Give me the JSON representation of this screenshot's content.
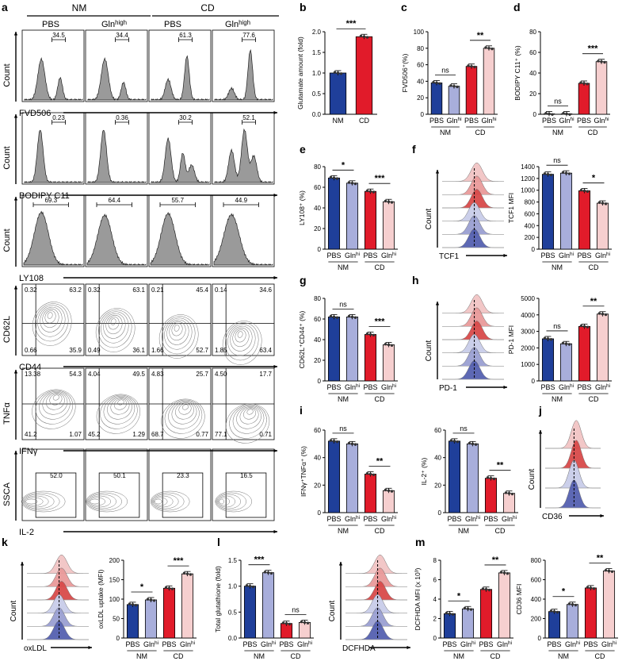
{
  "panel_letters": [
    "a",
    "b",
    "c",
    "d",
    "e",
    "f",
    "g",
    "h",
    "i",
    "j",
    "k",
    "l",
    "m"
  ],
  "flow": {
    "groups": [
      "NM",
      "CD"
    ],
    "conditions": [
      "PBS",
      "Gln",
      "PBS",
      "Gln"
    ],
    "gln_sup": "high",
    "rows": [
      {
        "id": "fvd",
        "xlabel": "FVD506",
        "ylabel": "Count",
        "type": "hist",
        "gates": [
          "34.5",
          "34.4",
          "61.3",
          "77.6"
        ]
      },
      {
        "id": "bodipy",
        "xlabel": "BODIPY C11",
        "ylabel": "Count",
        "type": "hist",
        "gates": [
          "0.23",
          "0.36",
          "30.2",
          "52.1"
        ]
      },
      {
        "id": "ly108",
        "xlabel": "LY108",
        "ylabel": "Count",
        "type": "hist",
        "gates": [
          "69.3",
          "64.4",
          "55.7",
          "44.9"
        ]
      },
      {
        "id": "cd62l",
        "xlabel": "CD44",
        "ylabel": "CD62L",
        "type": "quad",
        "quads": [
          [
            "0.32",
            "63.2",
            "0.66",
            "35.9"
          ],
          [
            "0.32",
            "63.1",
            "0.49",
            "36.1"
          ],
          [
            "0.21",
            "45.4",
            "1.66",
            "52.7"
          ],
          [
            "0.14",
            "34.6",
            "1.85",
            "63.4"
          ]
        ]
      },
      {
        "id": "tnfa",
        "xlabel": "IFNγ",
        "ylabel": "TNFα",
        "type": "quad",
        "quads": [
          [
            "13.38",
            "54.3",
            "41.2",
            "1.07"
          ],
          [
            "4.04",
            "49.5",
            "45.2",
            "1.29"
          ],
          [
            "4.83",
            "25.7",
            "68.7",
            "0.77"
          ],
          [
            "4.50",
            "17.7",
            "77.1",
            "0.71"
          ]
        ]
      },
      {
        "id": "il2",
        "xlabel": "IL-2",
        "ylabel": "SSCA",
        "type": "gate",
        "gates": [
          "52.0",
          "50.1",
          "23.3",
          "16.5"
        ]
      }
    ]
  },
  "histo": {
    "f": {
      "xlabel": "TCF1",
      "ylabel": "Count"
    },
    "h": {
      "xlabel": "PD-1",
      "ylabel": "Count"
    },
    "j": {
      "xlabel": "CD36",
      "ylabel": "Count"
    },
    "k": {
      "xlabel": "oxLDL",
      "ylabel": "Count"
    },
    "m": {
      "xlabel": "DCFHDA",
      "ylabel": "Count"
    }
  },
  "chart_data": [
    {
      "id": "b",
      "type": "bar",
      "categories": [
        "NM",
        "CD"
      ],
      "values": [
        1.0,
        1.88
      ],
      "ylabel": "Glutamate amount (fold)",
      "ylim": [
        0,
        2.0
      ],
      "yticks": [
        "0.0",
        "0.5",
        "1.0",
        "1.5",
        "2.0"
      ],
      "sig": [
        {
          "label": "***",
          "from": 0,
          "to": 1
        }
      ]
    },
    {
      "id": "c",
      "type": "bar",
      "categories": [
        "PBS",
        "Gln",
        "PBS",
        "Gln"
      ],
      "groups": [
        "NM",
        "CD"
      ],
      "values": [
        38,
        34,
        58,
        80
      ],
      "ylabel": "FVD506⁺(%)",
      "ylim": [
        0,
        100
      ],
      "yticks": [
        "0",
        "20",
        "40",
        "60",
        "80",
        "100"
      ],
      "sig": [
        {
          "label": "ns",
          "from": 0,
          "to": 1
        },
        {
          "label": "**",
          "from": 2,
          "to": 3
        }
      ]
    },
    {
      "id": "d",
      "type": "bar",
      "categories": [
        "PBS",
        "Gln",
        "PBS",
        "Gln"
      ],
      "groups": [
        "NM",
        "CD"
      ],
      "values": [
        0.4,
        0.4,
        30,
        51
      ],
      "ylabel": "BODIPY C11⁺ (%)",
      "ylim": [
        0,
        80
      ],
      "yticks": [
        "0",
        "20",
        "40",
        "60",
        "80"
      ],
      "sig": [
        {
          "label": "ns",
          "from": 0,
          "to": 1
        },
        {
          "label": "***",
          "from": 2,
          "to": 3
        }
      ]
    },
    {
      "id": "e",
      "type": "bar",
      "categories": [
        "PBS",
        "Gln",
        "PBS",
        "Gln"
      ],
      "groups": [
        "NM",
        "CD"
      ],
      "values": [
        69,
        64,
        56,
        46
      ],
      "ylabel": "LY108⁺ (%)",
      "ylim": [
        0,
        80
      ],
      "yticks": [
        "0",
        "20",
        "40",
        "60",
        "80"
      ],
      "sig": [
        {
          "label": "*",
          "from": 0,
          "to": 1
        },
        {
          "label": "***",
          "from": 2,
          "to": 3
        }
      ]
    },
    {
      "id": "f",
      "type": "bar",
      "categories": [
        "PBS",
        "Gln",
        "PBS",
        "Gln"
      ],
      "groups": [
        "NM",
        "CD"
      ],
      "values": [
        1270,
        1290,
        990,
        780
      ],
      "ylabel": "TCF1 MFI",
      "ylim": [
        0,
        1400
      ],
      "yticks": [
        "0",
        "200",
        "400",
        "600",
        "800",
        "1000",
        "1200",
        "1400"
      ],
      "sig": [
        {
          "label": "ns",
          "from": 0,
          "to": 1
        },
        {
          "label": "*",
          "from": 2,
          "to": 3
        }
      ]
    },
    {
      "id": "g",
      "type": "bar",
      "categories": [
        "PBS",
        "Gln",
        "PBS",
        "Gln"
      ],
      "groups": [
        "NM",
        "CD"
      ],
      "values": [
        62,
        62,
        45,
        35
      ],
      "ylabel": "CD62L⁺CD44⁺ (%)",
      "ylim": [
        0,
        80
      ],
      "yticks": [
        "0",
        "20",
        "40",
        "60",
        "80"
      ],
      "sig": [
        {
          "label": "ns",
          "from": 0,
          "to": 1
        },
        {
          "label": "***",
          "from": 2,
          "to": 3
        }
      ]
    },
    {
      "id": "h",
      "type": "bar",
      "categories": [
        "PBS",
        "Gln",
        "PBS",
        "Gln"
      ],
      "groups": [
        "NM",
        "CD"
      ],
      "values": [
        2550,
        2250,
        3300,
        4050
      ],
      "ylabel": "PD-1 MFI",
      "ylim": [
        0,
        5000
      ],
      "yticks": [
        "0",
        "1000",
        "2000",
        "3000",
        "4000",
        "5000"
      ],
      "sig": [
        {
          "label": "ns",
          "from": 0,
          "to": 1
        },
        {
          "label": "**",
          "from": 2,
          "to": 3
        }
      ]
    },
    {
      "id": "i1",
      "type": "bar",
      "categories": [
        "PBS",
        "Gln",
        "PBS",
        "Gln"
      ],
      "groups": [
        "NM",
        "CD"
      ],
      "values": [
        52,
        50,
        28,
        16
      ],
      "ylabel": "IFNγ⁺TNFα⁺ (%)",
      "ylim": [
        0,
        60
      ],
      "yticks": [
        "0",
        "20",
        "40",
        "60"
      ],
      "sig": [
        {
          "label": "ns",
          "from": 0,
          "to": 1
        },
        {
          "label": "**",
          "from": 2,
          "to": 3
        }
      ]
    },
    {
      "id": "i2",
      "type": "bar",
      "categories": [
        "PBS",
        "Gln",
        "PBS",
        "Gln"
      ],
      "groups": [
        "NM",
        "CD"
      ],
      "values": [
        52,
        50,
        25,
        14
      ],
      "ylabel": "IL-2⁺ (%)",
      "ylim": [
        0,
        60
      ],
      "yticks": [
        "0",
        "20",
        "40",
        "60"
      ],
      "sig": [
        {
          "label": "ns",
          "from": 0,
          "to": 1
        },
        {
          "label": "**",
          "from": 2,
          "to": 3
        }
      ]
    },
    {
      "id": "k",
      "type": "bar",
      "categories": [
        "PBS",
        "Gln",
        "PBS",
        "Gln"
      ],
      "groups": [
        "NM",
        "CD"
      ],
      "values": [
        86,
        98,
        128,
        165
      ],
      "ylabel": "oxLDL uptake (MFI)",
      "ylim": [
        0,
        200
      ],
      "yticks": [
        "0",
        "50",
        "100",
        "150",
        "200"
      ],
      "sig": [
        {
          "label": "*",
          "from": 0,
          "to": 1
        },
        {
          "label": "***",
          "from": 2,
          "to": 3
        }
      ]
    },
    {
      "id": "l",
      "type": "bar",
      "categories": [
        "PBS",
        "Gln",
        "PBS",
        "Gln"
      ],
      "groups": [
        "NM",
        "CD"
      ],
      "values": [
        1.0,
        1.26,
        0.28,
        0.3
      ],
      "ylabel": "Total glutathione (fold)",
      "ylim": [
        0,
        1.5
      ],
      "yticks": [
        "0.0",
        "0.5",
        "1.0",
        "1.5"
      ],
      "sig": [
        {
          "label": "***",
          "from": 0,
          "to": 1
        },
        {
          "label": "ns",
          "from": 2,
          "to": 3
        }
      ]
    },
    {
      "id": "m",
      "type": "bar",
      "categories": [
        "PBS",
        "Gln",
        "PBS",
        "Gln"
      ],
      "groups": [
        "NM",
        "CD"
      ],
      "values": [
        2.5,
        3.0,
        5.0,
        6.7
      ],
      "ylabel": "DCFHDA MFI (x 10³)",
      "ylim": [
        0,
        8
      ],
      "yticks": [
        "0",
        "2",
        "4",
        "6",
        "8"
      ],
      "sig": [
        {
          "label": "*",
          "from": 0,
          "to": 1
        },
        {
          "label": "**",
          "from": 2,
          "to": 3
        }
      ]
    },
    {
      "id": "j",
      "type": "bar",
      "categories": [
        "PBS",
        "Gln",
        "PBS",
        "Gln"
      ],
      "groups": [
        "NM",
        "CD"
      ],
      "values": [
        272,
        345,
        515,
        690
      ],
      "ylabel": "CD36 MFI",
      "ylim": [
        0,
        800
      ],
      "yticks": [
        "0",
        "200",
        "400",
        "600",
        "800"
      ],
      "sig": [
        {
          "label": "*",
          "from": 0,
          "to": 1
        },
        {
          "label": "**",
          "from": 2,
          "to": 3
        }
      ]
    }
  ],
  "gln_tick_sup": "hi",
  "colors": {
    "nm_pbs": "#1f3f9a",
    "nm_gln": "#a8aedb",
    "cd_pbs": "#e11b2a",
    "cd_gln": "#f6cfcf"
  }
}
